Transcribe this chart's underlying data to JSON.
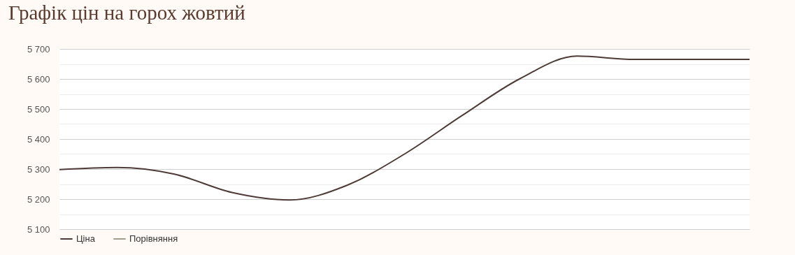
{
  "chart_data": {
    "type": "line",
    "title": "Графік цін на горох жовтий",
    "categories": [
      null,
      null,
      null,
      null,
      null,
      null,
      null,
      null,
      null,
      null,
      null,
      null,
      null
    ],
    "series": [
      {
        "name": "Ціна",
        "color": "#4e3b37",
        "values": [
          5298,
          5305,
          5283,
          5222,
          5197,
          5246,
          5350,
          5478,
          5600,
          5676,
          5665,
          5665,
          5665
        ]
      },
      {
        "name": "Порівняння",
        "color": "#a09c8c",
        "values": [
          null,
          null,
          null,
          null,
          null,
          null,
          null,
          null,
          null,
          null,
          null,
          null,
          null
        ]
      }
    ],
    "ylim": [
      5100,
      5700
    ],
    "yticks": [
      {
        "value": 5100,
        "label": "5 100"
      },
      {
        "value": 5150,
        "label": null
      },
      {
        "value": 5200,
        "label": "5 200"
      },
      {
        "value": 5250,
        "label": null
      },
      {
        "value": 5300,
        "label": "5 300"
      },
      {
        "value": 5350,
        "label": null
      },
      {
        "value": 5400,
        "label": "5 400"
      },
      {
        "value": 5450,
        "label": null
      },
      {
        "value": 5500,
        "label": "5 500"
      },
      {
        "value": 5550,
        "label": null
      },
      {
        "value": 5600,
        "label": "5 600"
      },
      {
        "value": 5650,
        "label": null
      },
      {
        "value": 5700,
        "label": "5 700"
      }
    ],
    "grid": "y",
    "legend": "bottom",
    "tick_labels": "y"
  }
}
